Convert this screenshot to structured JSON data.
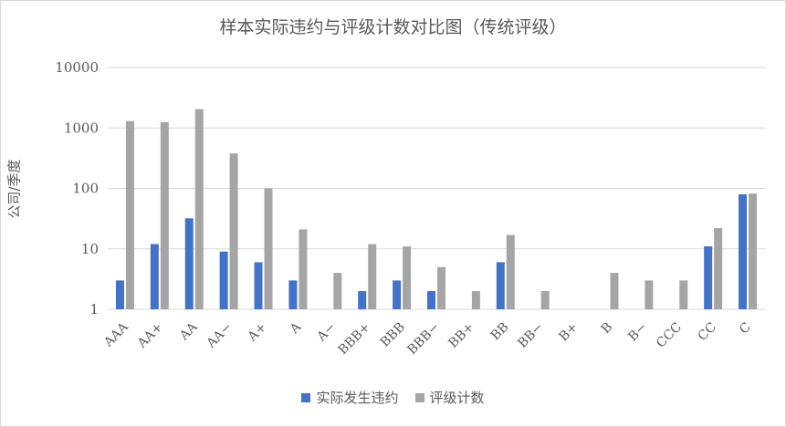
{
  "chart_data": {
    "type": "bar",
    "title": "样本实际违约与评级计数对比图（传统评级）",
    "ylabel": "公司/季度",
    "xlabel": "",
    "yscale": "log",
    "ylim": [
      1,
      10000
    ],
    "yticks": [
      "1",
      "10",
      "100",
      "1000",
      "10000"
    ],
    "grid": true,
    "legend_position": "bottom",
    "categories": [
      "AAA",
      "AA+",
      "AA",
      "AA−",
      "A+",
      "A",
      "A−",
      "BBB+",
      "BBB",
      "BBB−",
      "BB+",
      "BB",
      "BB−",
      "B+",
      "B",
      "B−",
      "CCC",
      "CC",
      "C"
    ],
    "series": [
      {
        "name": "实际发生违约",
        "color": "#4472c4",
        "values": [
          3,
          12,
          32,
          9,
          6,
          3,
          null,
          2,
          3,
          2,
          null,
          6,
          null,
          null,
          null,
          null,
          null,
          11,
          80
        ]
      },
      {
        "name": "评级计数",
        "color": "#a5a5a5",
        "values": [
          1300,
          1250,
          2050,
          380,
          100,
          21,
          4,
          12,
          11,
          5,
          2,
          17,
          2,
          null,
          4,
          3,
          3,
          22,
          82
        ]
      }
    ]
  }
}
